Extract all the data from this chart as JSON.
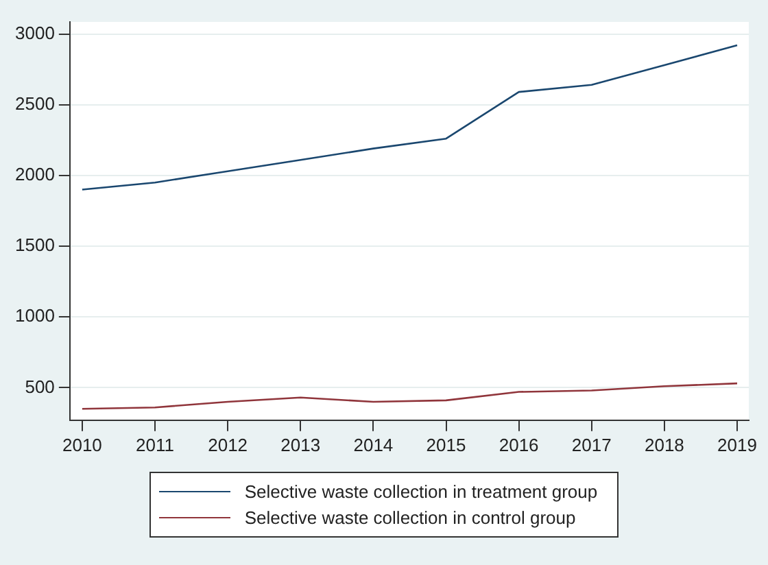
{
  "chart_data": {
    "type": "line",
    "x": [
      2010,
      2011,
      2012,
      2013,
      2014,
      2015,
      2016,
      2017,
      2018,
      2019
    ],
    "series": [
      {
        "name": "Selective waste collection in treatment group",
        "color": "#1a476f",
        "values": [
          1900,
          1950,
          2030,
          2110,
          2190,
          2260,
          2590,
          2640,
          2780,
          2920
        ]
      },
      {
        "name": "Selective waste collection in control group",
        "color": "#90353b",
        "values": [
          350,
          360,
          400,
          430,
          400,
          410,
          470,
          480,
          510,
          530
        ]
      }
    ],
    "xlim": [
      2009.83,
      2019.16
    ],
    "xticks": [
      2010,
      2011,
      2012,
      2013,
      2014,
      2015,
      2016,
      2017,
      2018,
      2019
    ],
    "ylim": [
      270,
      3085
    ],
    "yticks": [
      500,
      1000,
      1500,
      2000,
      2500,
      3000
    ],
    "grid": "y",
    "legend": "bottom",
    "marker": "none",
    "line_style": "solid"
  }
}
